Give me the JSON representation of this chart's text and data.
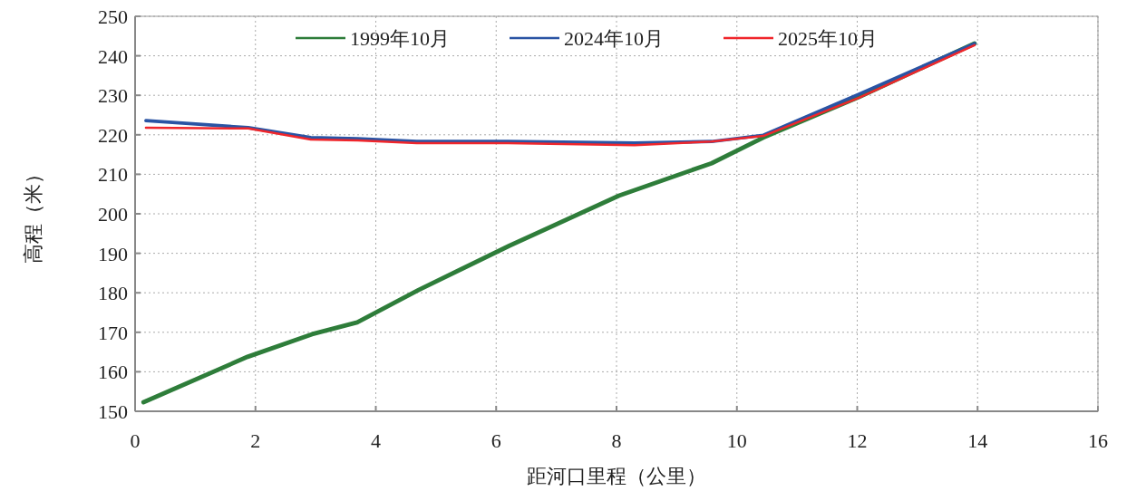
{
  "chart_data": {
    "type": "line",
    "xlabel": "距河口里程（公里）",
    "ylabel": "高程（米）",
    "xlim": [
      0,
      16
    ],
    "xticks": [
      0,
      2,
      4,
      6,
      8,
      10,
      12,
      14,
      16
    ],
    "ylim": [
      150,
      250
    ],
    "yticks": [
      150,
      160,
      170,
      180,
      190,
      200,
      210,
      220,
      230,
      240,
      250
    ],
    "grid": true,
    "legend": "top",
    "marker": "none",
    "line_style": "solid",
    "series": [
      {
        "name": "1999年10月",
        "color": "#2e7d3a",
        "x": [
          0.14,
          1.87,
          2.94,
          3.69,
          4.71,
          6.22,
          8.04,
          9.58,
          10.44,
          12.03,
          13.95
        ],
        "values": [
          152.3,
          163.8,
          169.5,
          172.5,
          180.7,
          191.9,
          204.6,
          212.8,
          219.3,
          229.6,
          243.1
        ]
      },
      {
        "name": "2024年10月",
        "color": "#2a54a4",
        "x": [
          0.18,
          1.88,
          2.92,
          3.7,
          4.68,
          6.19,
          8.3,
          9.58,
          10.44,
          12.03,
          13.95
        ],
        "values": [
          223.6,
          221.8,
          219.3,
          219.0,
          218.3,
          218.3,
          217.9,
          218.3,
          219.9,
          230.3,
          243.1
        ]
      },
      {
        "name": "2025年10月",
        "color": "#f0262b",
        "x": [
          0.18,
          1.88,
          2.92,
          3.7,
          4.68,
          6.19,
          8.3,
          9.58,
          10.44,
          12.03,
          13.95
        ],
        "values": [
          221.8,
          221.6,
          218.8,
          218.6,
          217.9,
          217.9,
          217.4,
          218.3,
          219.7,
          229.4,
          242.7
        ]
      }
    ]
  }
}
